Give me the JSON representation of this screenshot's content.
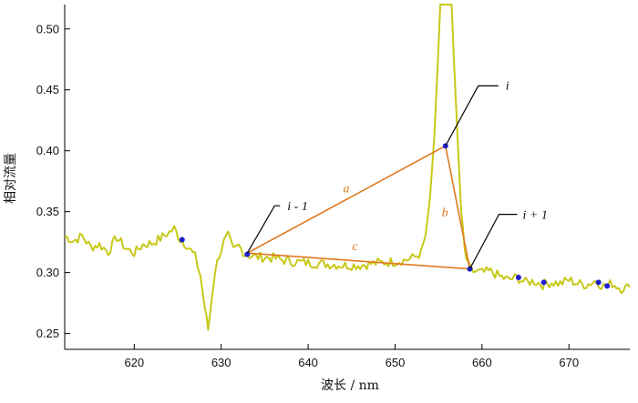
{
  "chart_data": {
    "type": "line",
    "xlabel": "波长 / nm",
    "ylabel": "相对流量",
    "xlim": [
      612,
      677
    ],
    "ylim": [
      0.237,
      0.52
    ],
    "x_ticks": [
      620,
      630,
      640,
      650,
      660,
      670
    ],
    "y_ticks": [
      0.25,
      0.3,
      0.35,
      0.4,
      0.45,
      0.5
    ],
    "x_tick_labels": [
      "620",
      "630",
      "640",
      "650",
      "660",
      "670"
    ],
    "y_tick_labels": [
      "0.25",
      "0.30",
      "0.35",
      "0.40",
      "0.45",
      "0.50"
    ],
    "grid": false,
    "colors": {
      "spectrum": "#c8c81a",
      "triangle": "#e07820",
      "points": "#1f1fd0",
      "leaders": "#000000"
    },
    "spectrum": {
      "x": [
        612.0,
        613.0,
        614.0,
        615.0,
        616.0,
        617.0,
        618.0,
        619.0,
        620.0,
        621.0,
        622.0,
        623.0,
        624.0,
        624.6,
        625.3,
        626.0,
        627.0,
        627.6,
        628.1,
        628.5,
        628.9,
        629.3,
        629.8,
        630.3,
        630.8,
        631.4,
        632.0,
        632.8,
        634.0,
        636.0,
        638.0,
        640.0,
        642.0,
        644.0,
        646.0,
        648.0,
        650.0,
        651.0,
        652.0,
        653.0,
        653.5,
        654.0,
        654.5,
        654.9,
        655.2,
        655.5,
        655.8,
        656.2,
        656.5,
        656.8,
        657.2,
        657.6,
        658.0,
        658.4,
        659.0,
        660.0,
        661.0,
        662.0,
        663.0,
        664.0,
        665.0,
        666.0,
        667.0,
        668.0,
        669.0,
        670.0,
        671.0,
        672.0,
        673.0,
        674.0,
        675.0,
        676.0,
        677.0
      ],
      "y": [
        0.33,
        0.326,
        0.33,
        0.321,
        0.323,
        0.317,
        0.329,
        0.32,
        0.316,
        0.323,
        0.324,
        0.328,
        0.333,
        0.336,
        0.327,
        0.323,
        0.313,
        0.298,
        0.272,
        0.253,
        0.278,
        0.302,
        0.315,
        0.325,
        0.33,
        0.318,
        0.322,
        0.315,
        0.313,
        0.312,
        0.309,
        0.308,
        0.307,
        0.306,
        0.306,
        0.308,
        0.309,
        0.31,
        0.312,
        0.316,
        0.33,
        0.36,
        0.41,
        0.47,
        0.52,
        0.52,
        0.52,
        0.52,
        0.52,
        0.47,
        0.41,
        0.35,
        0.318,
        0.305,
        0.301,
        0.3,
        0.301,
        0.297,
        0.294,
        0.296,
        0.292,
        0.293,
        0.29,
        0.292,
        0.291,
        0.294,
        0.291,
        0.29,
        0.293,
        0.289,
        0.291,
        0.287,
        0.288
      ]
    },
    "marked_points": {
      "x": [
        625.5,
        633.0,
        655.8,
        658.6,
        664.2,
        667.1,
        673.4,
        674.4
      ],
      "y": [
        0.327,
        0.315,
        0.404,
        0.303,
        0.296,
        0.292,
        0.292,
        0.289
      ]
    },
    "triangle": {
      "vertices": [
        {
          "x": 633.0,
          "y": 0.316
        },
        {
          "x": 655.8,
          "y": 0.404
        },
        {
          "x": 658.6,
          "y": 0.303
        }
      ],
      "edge_labels": [
        "a",
        "b",
        "c"
      ]
    },
    "annotations": [
      {
        "text": "i - 1"
      },
      {
        "text": "i"
      },
      {
        "text": "i + 1"
      }
    ]
  }
}
